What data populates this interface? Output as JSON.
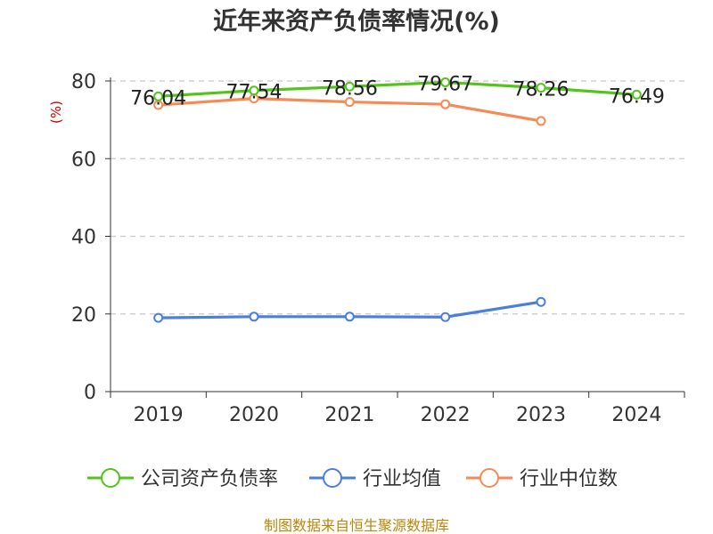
{
  "chart_data": {
    "type": "line",
    "title": "近年来资产负债率情况(%)",
    "ylabel": "(%)",
    "categories": [
      "2019",
      "2020",
      "2021",
      "2022",
      "2023",
      "2024"
    ],
    "ylim": [
      0,
      80
    ],
    "yticks": [
      "0",
      "20",
      "40",
      "60",
      "80"
    ],
    "grid": true,
    "legend_position": "bottom",
    "series": [
      {
        "name": "公司资产负债率",
        "color": "#52c41a",
        "values": [
          76.04,
          77.54,
          78.56,
          79.67,
          78.26,
          76.49
        ],
        "labels": [
          "76.04",
          "77.54",
          "78.56",
          "79.67",
          "78.26",
          "76.49"
        ]
      },
      {
        "name": "行业均值",
        "color": "#4a7fdc",
        "values": [
          19.0,
          19.3,
          19.3,
          19.2,
          23.1,
          null
        ]
      },
      {
        "name": "行业中位数",
        "color": "#f58a55",
        "values": [
          73.8,
          75.5,
          74.6,
          74.0,
          69.7,
          null
        ]
      }
    ]
  },
  "source": "制图数据来自恒生聚源数据库"
}
